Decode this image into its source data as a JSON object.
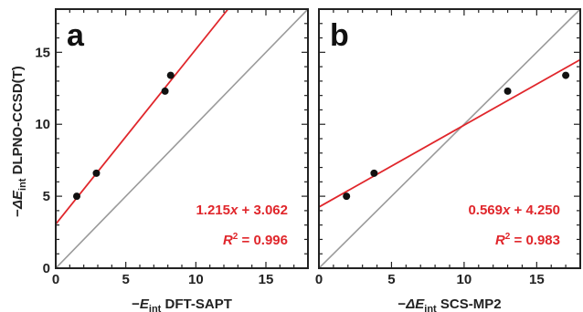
{
  "colors": {
    "fit": "#e0262b",
    "identity": "#9a9a9a",
    "point": "#111111",
    "axis": "#222222"
  },
  "shared": {
    "ylabel": {
      "prefix": "−",
      "sym": "ΔE",
      "sub": "int",
      "rest": " DLPNO-CCSD(T)"
    }
  },
  "chart_data": [
    {
      "type": "scatter",
      "panel": "a",
      "xlabel": {
        "prefix": "−",
        "sym": "E",
        "sub": "int",
        "rest": " DFT-SAPT"
      },
      "xlim": [
        0,
        18
      ],
      "ylim": [
        0,
        18
      ],
      "xticks": [
        0,
        5,
        10,
        15
      ],
      "yticks": [
        0,
        5,
        10,
        15
      ],
      "points": [
        {
          "x": 1.5,
          "y": 5.0
        },
        {
          "x": 2.9,
          "y": 6.6
        },
        {
          "x": 7.8,
          "y": 12.3
        },
        {
          "x": 8.2,
          "y": 13.4
        }
      ],
      "fit": {
        "slope": 1.215,
        "intercept": 3.062
      },
      "identity_line": true,
      "equation": {
        "slope": "1.215",
        "var": "x",
        "op": " + ",
        "intercept": "3.062"
      },
      "r2": {
        "label": "R",
        "sup": "2",
        "eq": " = ",
        "value": "0.996"
      }
    },
    {
      "type": "scatter",
      "panel": "b",
      "xlabel": {
        "prefix": "−",
        "sym": "ΔE",
        "sub": "int",
        "rest": " SCS-MP2"
      },
      "xlim": [
        0,
        18
      ],
      "ylim": [
        0,
        18
      ],
      "xticks": [
        0,
        5,
        10,
        15
      ],
      "yticks": [
        0,
        5,
        10,
        15
      ],
      "points": [
        {
          "x": 1.9,
          "y": 5.0
        },
        {
          "x": 3.8,
          "y": 6.6
        },
        {
          "x": 13.0,
          "y": 12.3
        },
        {
          "x": 17.0,
          "y": 13.4
        }
      ],
      "fit": {
        "slope": 0.569,
        "intercept": 4.25
      },
      "identity_line": true,
      "equation": {
        "slope": "0.569",
        "var": "x",
        "op": " + ",
        "intercept": "4.250"
      },
      "r2": {
        "label": "R",
        "sup": "2",
        "eq": " = ",
        "value": "0.983"
      }
    }
  ]
}
